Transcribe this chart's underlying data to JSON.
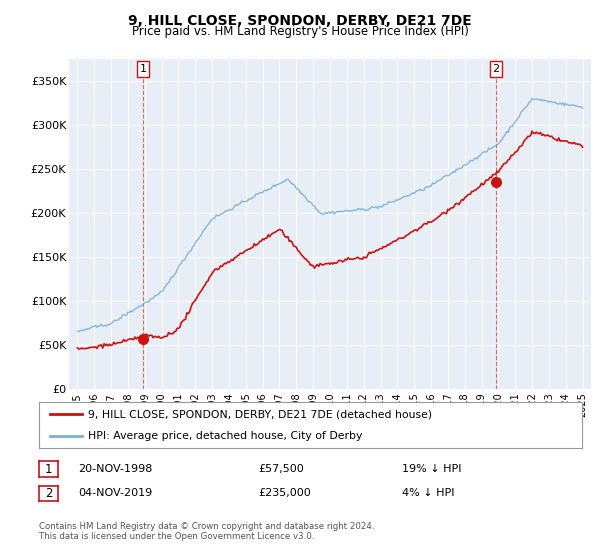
{
  "title": "9, HILL CLOSE, SPONDON, DERBY, DE21 7DE",
  "subtitle": "Price paid vs. HM Land Registry's House Price Index (HPI)",
  "title_fontsize": 10,
  "subtitle_fontsize": 8.5,
  "hpi_color": "#7ab0d8",
  "price_color": "#cc1111",
  "marker_color": "#cc1111",
  "background_color": "#ffffff",
  "chart_bg_color": "#e8eef5",
  "grid_color": "#ffffff",
  "vline_color": "#dd4444",
  "ylabel_vals": [
    0,
    50000,
    100000,
    150000,
    200000,
    250000,
    300000,
    350000
  ],
  "ylabel_labels": [
    "£0",
    "£50K",
    "£100K",
    "£150K",
    "£200K",
    "£250K",
    "£300K",
    "£350K"
  ],
  "xlim_start": 1994.5,
  "xlim_end": 2025.5,
  "ylim": [
    0,
    375000
  ],
  "sale1_x": 1998.9,
  "sale1_y": 57500,
  "sale1_label": "1",
  "sale2_x": 2019.85,
  "sale2_y": 235000,
  "sale2_label": "2",
  "legend_line1": "9, HILL CLOSE, SPONDON, DERBY, DE21 7DE (detached house)",
  "legend_line2": "HPI: Average price, detached house, City of Derby",
  "note1_label": "1",
  "note1_date": "20-NOV-1998",
  "note1_price": "£57,500",
  "note1_hpi": "19% ↓ HPI",
  "note2_label": "2",
  "note2_date": "04-NOV-2019",
  "note2_price": "£235,000",
  "note2_hpi": "4% ↓ HPI",
  "copyright": "Contains HM Land Registry data © Crown copyright and database right 2024.\nThis data is licensed under the Open Government Licence v3.0.",
  "xtick_years": [
    1995,
    1996,
    1997,
    1998,
    1999,
    2000,
    2001,
    2002,
    2003,
    2004,
    2005,
    2006,
    2007,
    2008,
    2009,
    2010,
    2011,
    2012,
    2013,
    2014,
    2015,
    2016,
    2017,
    2018,
    2019,
    2020,
    2021,
    2022,
    2023,
    2024,
    2025
  ]
}
